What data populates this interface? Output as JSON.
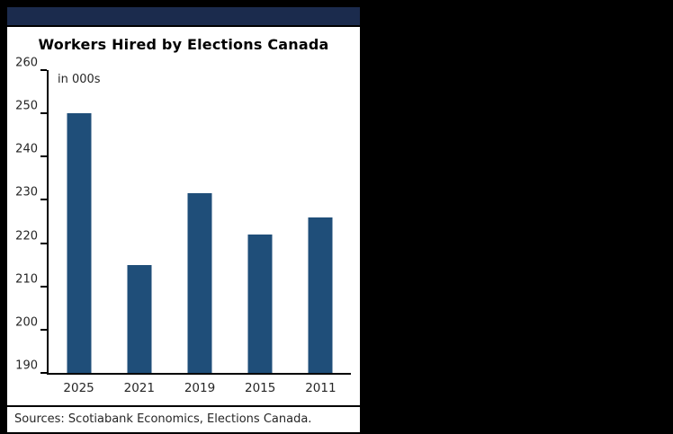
{
  "top_bar": {
    "color": "#1b2b4d"
  },
  "chart": {
    "title": "Workers Hired by Elections Canada",
    "unit_label": "in 000s",
    "source": "Sources: Scotiabank Economics, Elections Canada.",
    "bar_color": "#1f4e79",
    "background": "#ffffff"
  },
  "chart_data": {
    "type": "bar",
    "categories": [
      "2025",
      "2021",
      "2019",
      "2015",
      "2011"
    ],
    "values": [
      250,
      215,
      231.5,
      222,
      226
    ],
    "title": "Workers Hired by Elections Canada",
    "xlabel": "",
    "ylabel": "in 000s",
    "ylim": [
      190,
      260
    ],
    "yticks": [
      190,
      200,
      210,
      220,
      230,
      240,
      250,
      260
    ],
    "grid": false,
    "legend": false
  }
}
